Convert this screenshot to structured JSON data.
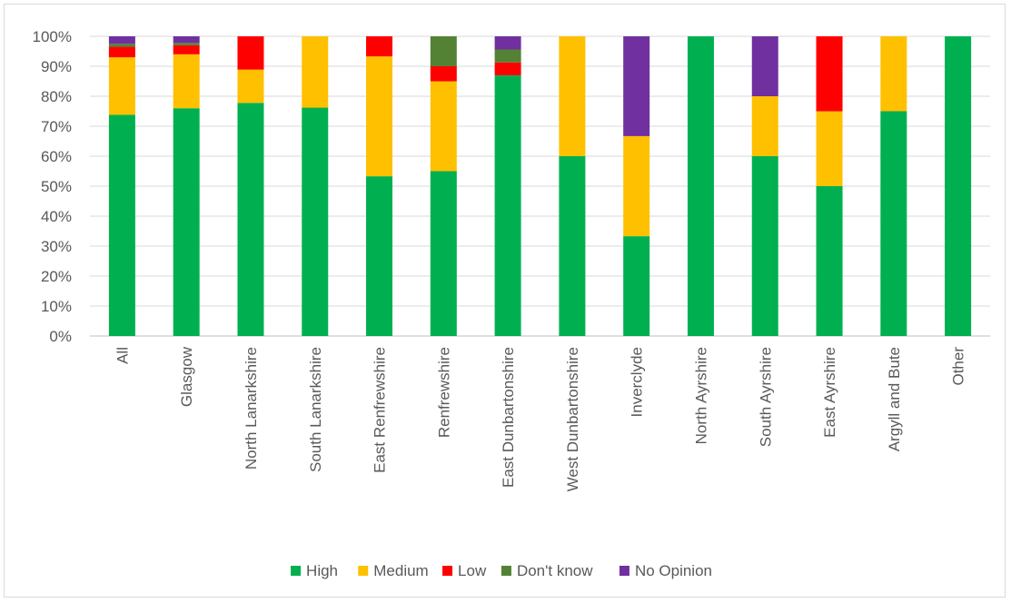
{
  "chart_data": {
    "type": "bar",
    "stacked": true,
    "categories": [
      "All",
      "Glasgow",
      "North Lanarkshire",
      "South Lanarkshire",
      "East Renfrewshire",
      "Renfrewshire",
      "East Dunbartonshire",
      "West Dunbartonshire",
      "Inverclyde",
      "North Ayrshire",
      "South Ayrshire",
      "East Ayrshire",
      "Argyll and Bute",
      "Other"
    ],
    "series": [
      {
        "name": "High",
        "color": "#00b050",
        "values": [
          73.8,
          76.0,
          77.8,
          76.2,
          53.3,
          55.0,
          87.0,
          60.0,
          33.3,
          100.0,
          60.0,
          50.0,
          75.0,
          100.0
        ]
      },
      {
        "name": "Medium",
        "color": "#ffc000",
        "values": [
          19.2,
          18.0,
          11.1,
          23.8,
          40.0,
          30.0,
          0.0,
          40.0,
          33.4,
          0.0,
          20.0,
          25.0,
          25.0,
          0.0
        ]
      },
      {
        "name": "Low",
        "color": "#ff0000",
        "values": [
          3.5,
          3.0,
          11.1,
          0.0,
          6.7,
          5.0,
          4.3,
          0.0,
          0.0,
          0.0,
          0.0,
          25.0,
          0.0,
          0.0
        ]
      },
      {
        "name": "Don't know",
        "color": "#548235",
        "values": [
          1.0,
          0.8,
          0.0,
          0.0,
          0.0,
          10.0,
          4.3,
          0.0,
          0.0,
          0.0,
          0.0,
          0.0,
          0.0,
          0.0
        ]
      },
      {
        "name": "No Opinion",
        "color": "#7030a0",
        "values": [
          2.5,
          2.2,
          0.0,
          0.0,
          0.0,
          0.0,
          4.4,
          0.0,
          33.3,
          0.0,
          20.0,
          0.0,
          0.0,
          0.0
        ]
      }
    ],
    "y_ticks": [
      "0%",
      "10%",
      "20%",
      "30%",
      "40%",
      "50%",
      "60%",
      "70%",
      "80%",
      "90%",
      "100%"
    ],
    "ylim": [
      0,
      100
    ],
    "grid": true,
    "legend_position": "bottom"
  }
}
